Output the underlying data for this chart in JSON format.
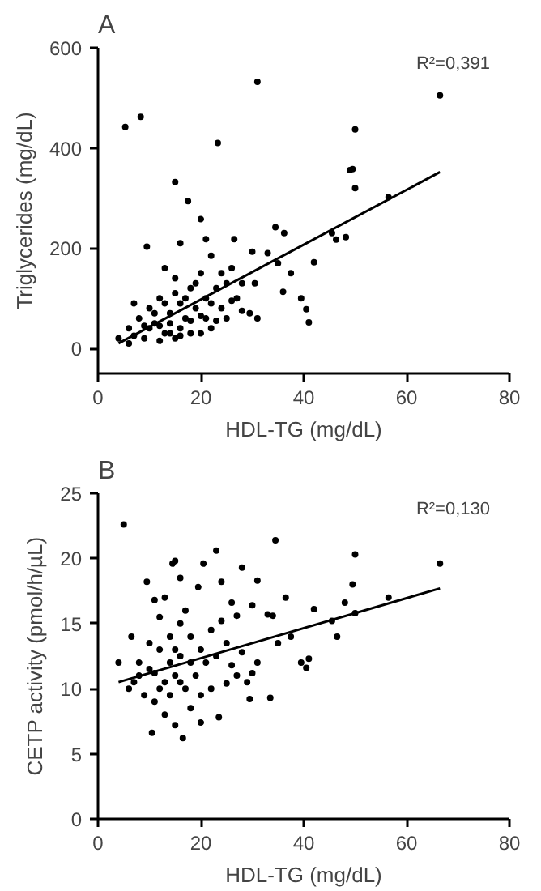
{
  "chart_data": [
    {
      "type": "scatter",
      "title": "A",
      "xlabel": "HDL-TG (mg/dL)",
      "ylabel": "Triglycerides (mg/dL)",
      "xlim": [
        0,
        80
      ],
      "ylim": [
        -50,
        600
      ],
      "xticks": [
        0,
        20,
        40,
        60,
        80
      ],
      "yticks": [
        0,
        200,
        400,
        600
      ],
      "grid": false,
      "annotations": [
        "R²=0,391"
      ],
      "series": [
        {
          "color": "#000000",
          "marker": "circle",
          "x": [
            5.3,
            8.3,
            31,
            23.3,
            66.5,
            50,
            49,
            49.5,
            50,
            56.5,
            15,
            17.5,
            20,
            9.5,
            16,
            21,
            26.5,
            34.5,
            36.2,
            30,
            33,
            45.5,
            46.3,
            48.2,
            42,
            35,
            37.5,
            36,
            39.5,
            40.5,
            41,
            31,
            29.5,
            28,
            30.5,
            24,
            22,
            26,
            20,
            18,
            15,
            13,
            12,
            10,
            8,
            6,
            4,
            7,
            11,
            13,
            14,
            16,
            17,
            19,
            21,
            23,
            25,
            27,
            25,
            22,
            18,
            15,
            12,
            9,
            6,
            10,
            14,
            16,
            18,
            20,
            22,
            24,
            13,
            11,
            9,
            15,
            17,
            19,
            21,
            7,
            12,
            14,
            16,
            20,
            23,
            26,
            28
          ],
          "values": [
            442,
            462,
            532,
            410,
            505,
            437,
            356,
            358,
            320,
            302,
            332,
            294,
            258,
            203,
            210,
            218,
            218,
            242,
            230,
            193,
            190,
            230,
            217,
            222,
            172,
            170,
            150,
            113,
            100,
            78,
            52,
            60,
            70,
            130,
            130,
            150,
            185,
            160,
            150,
            120,
            140,
            160,
            100,
            80,
            60,
            40,
            20,
            90,
            50,
            30,
            70,
            90,
            60,
            80,
            100,
            120,
            130,
            100,
            60,
            40,
            30,
            20,
            15,
            20,
            10,
            40,
            50,
            40,
            55,
            65,
            90,
            80,
            90,
            70,
            45,
            110,
            100,
            130,
            60,
            25,
            45,
            30,
            25,
            30,
            55,
            95,
            75
          ]
        },
        {
          "type": "line",
          "color": "#000000",
          "marker": "none",
          "line_style": "solid",
          "x": [
            4,
            66.5
          ],
          "values": [
            10,
            352
          ]
        }
      ]
    },
    {
      "type": "scatter",
      "title": "B",
      "xlabel": "HDL-TG (mg/dL)",
      "ylabel": "CETP activity (pmol/h/µL)",
      "xlim": [
        0,
        80
      ],
      "ylim": [
        0,
        25
      ],
      "xticks": [
        0,
        20,
        40,
        60,
        80
      ],
      "yticks": [
        0,
        5,
        10,
        15,
        20,
        25
      ],
      "grid": false,
      "annotations": [
        "R²=0,130"
      ],
      "series": [
        {
          "color": "#000000",
          "marker": "circle",
          "x": [
            5,
            34.5,
            23,
            15,
            14.5,
            20.5,
            28,
            50,
            66.5,
            49.5,
            56.5,
            48,
            42,
            36.5,
            31,
            24,
            19.5,
            16,
            9.5,
            11,
            6.5,
            4,
            10.5,
            16.5,
            15,
            20,
            23.5,
            29.5,
            33.5,
            39.5,
            40.5,
            41,
            45.5,
            46.5,
            50,
            37.5,
            34,
            33,
            30,
            27,
            26,
            24,
            31,
            29,
            27,
            25,
            22,
            20,
            18,
            13,
            11,
            9,
            7,
            8,
            10,
            12,
            14,
            16,
            18,
            20,
            22,
            19,
            17,
            15,
            13,
            11,
            12,
            14,
            16,
            18,
            10,
            12,
            14,
            16,
            21,
            23,
            25,
            26,
            28,
            30,
            35,
            8,
            6,
            17,
            13,
            15
          ],
          "values": [
            22.6,
            21.4,
            20.6,
            19.8,
            19.6,
            19.6,
            19.3,
            20.3,
            19.6,
            18,
            17,
            16.6,
            16.1,
            17,
            18.3,
            18.2,
            17.8,
            18.5,
            18.2,
            16.8,
            14,
            12,
            6.6,
            6.2,
            7.2,
            7.4,
            7.8,
            9.2,
            9.3,
            12,
            11.6,
            12.3,
            15.2,
            14,
            15.8,
            14,
            15.6,
            15.7,
            16.4,
            15.6,
            16.6,
            15.2,
            12,
            10.5,
            11,
            10.4,
            10,
            9.5,
            8.5,
            8,
            9,
            9.5,
            10.5,
            12,
            11.5,
            13,
            14,
            15,
            12,
            13,
            14.5,
            11,
            10,
            11,
            10.5,
            11.2,
            10,
            12,
            12.5,
            14,
            13.5,
            15.5,
            9.5,
            10.5,
            12,
            12.5,
            13.5,
            11.8,
            12.8,
            11.2,
            13.5,
            11,
            10,
            16,
            17,
            13
          ]
        },
        {
          "type": "line",
          "color": "#000000",
          "marker": "none",
          "line_style": "solid",
          "x": [
            4,
            66.5
          ],
          "values": [
            10.5,
            17.7
          ]
        }
      ]
    }
  ]
}
